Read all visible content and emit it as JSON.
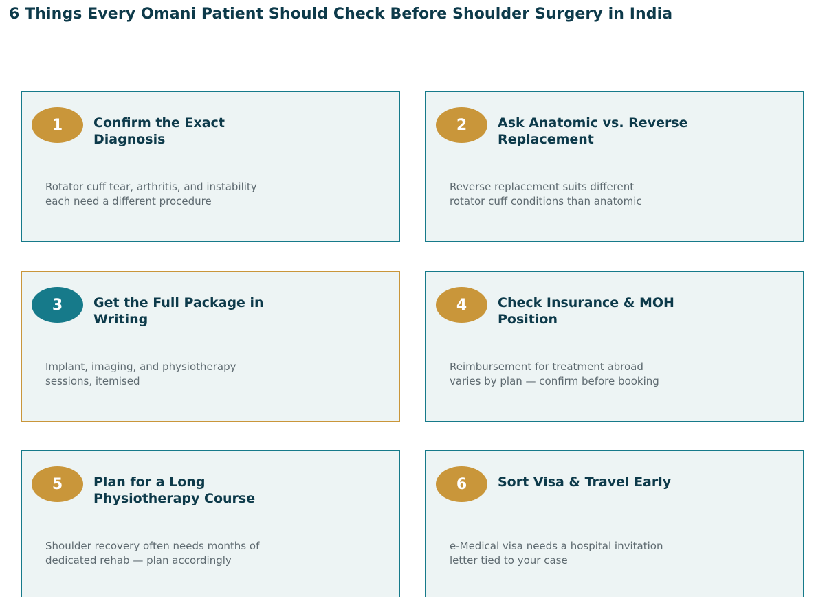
{
  "title": "6 Things Every Omani Patient Should Check Before Shoulder Surgery in India",
  "colors": {
    "title_text": "#0d3a4a",
    "card_fill": "#edf4f4",
    "card_border_teal": "#167a8a",
    "card_border_gold": "#c9963a",
    "badge_gold": "#c9963a",
    "badge_teal": "#167a8a",
    "description_text": "#5e6a70"
  },
  "cards": [
    {
      "number": "1",
      "title": "Confirm the Exact Diagnosis",
      "description": "Rotator cuff tear, arthritis, and instability each need a different procedure",
      "highlighted": false
    },
    {
      "number": "2",
      "title": "Ask Anatomic vs. Reverse Replacement",
      "description": "Reverse replacement suits different rotator cuff conditions than anatomic",
      "highlighted": false
    },
    {
      "number": "3",
      "title": "Get the Full Package in Writing",
      "description": "Implant, imaging, and physiotherapy sessions, itemised",
      "highlighted": true
    },
    {
      "number": "4",
      "title": "Check Insurance & MOH Position",
      "description": "Reimbursement for treatment abroad varies by plan — confirm before booking",
      "highlighted": false
    },
    {
      "number": "5",
      "title": "Plan for a Long Physiotherapy Course",
      "description": "Shoulder recovery often needs months of dedicated rehab — plan accordingly",
      "highlighted": false
    },
    {
      "number": "6",
      "title": "Sort Visa & Travel Early",
      "description": "e-Medical visa needs a hospital invitation letter tied to your case",
      "highlighted": false
    }
  ]
}
